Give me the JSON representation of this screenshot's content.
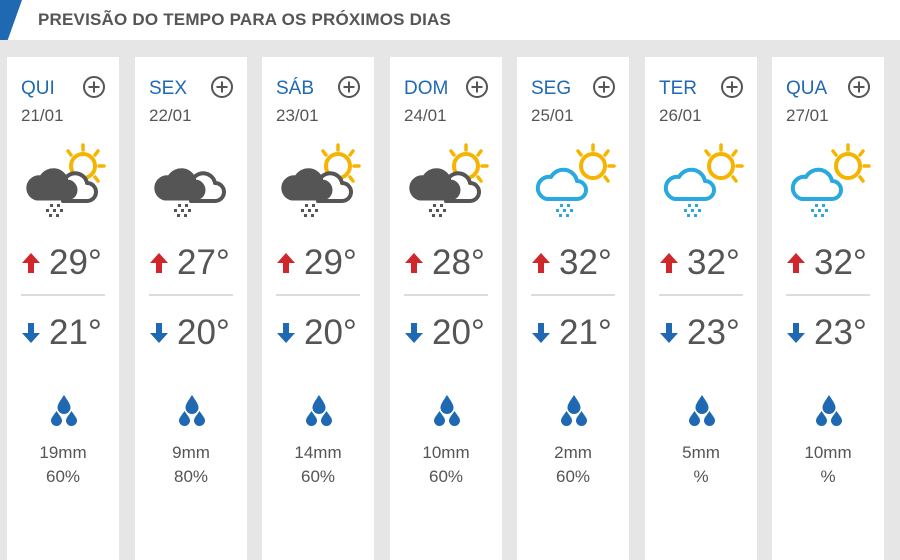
{
  "header": {
    "title": "PREVISÃO DO TEMPO PARA OS PRÓXIMOS DIAS"
  },
  "colors": {
    "accent": "#1f69b3",
    "text": "#555555",
    "max_arrow": "#d0262c",
    "min_arrow": "#1f69b3",
    "cloud_dark": "#555555",
    "cloud_blue": "#2aa9df",
    "sun": "#f5b400"
  },
  "days": [
    {
      "name": "QUI",
      "date": "21/01",
      "icon": "dark-cloud-sun-rain-icon",
      "max": "29°",
      "min": "21°",
      "rain_mm": "19mm",
      "rain_pct": "60%"
    },
    {
      "name": "SEX",
      "date": "22/01",
      "icon": "dark-cloud-rain-icon",
      "max": "27°",
      "min": "20°",
      "rain_mm": "9mm",
      "rain_pct": "80%"
    },
    {
      "name": "SÁB",
      "date": "23/01",
      "icon": "dark-cloud-sun-rain-icon",
      "max": "29°",
      "min": "20°",
      "rain_mm": "14mm",
      "rain_pct": "60%"
    },
    {
      "name": "DOM",
      "date": "24/01",
      "icon": "dark-cloud-sun-rain-icon",
      "max": "28°",
      "min": "20°",
      "rain_mm": "10mm",
      "rain_pct": "60%"
    },
    {
      "name": "SEG",
      "date": "25/01",
      "icon": "blue-cloud-sun-rain-icon",
      "max": "32°",
      "min": "21°",
      "rain_mm": "2mm",
      "rain_pct": "60%"
    },
    {
      "name": "TER",
      "date": "26/01",
      "icon": "blue-cloud-sun-rain-icon",
      "max": "32°",
      "min": "23°",
      "rain_mm": "5mm",
      "rain_pct": "%"
    },
    {
      "name": "QUA",
      "date": "27/01",
      "icon": "blue-cloud-sun-rain-icon",
      "max": "32°",
      "min": "23°",
      "rain_mm": "10mm",
      "rain_pct": "%"
    }
  ]
}
